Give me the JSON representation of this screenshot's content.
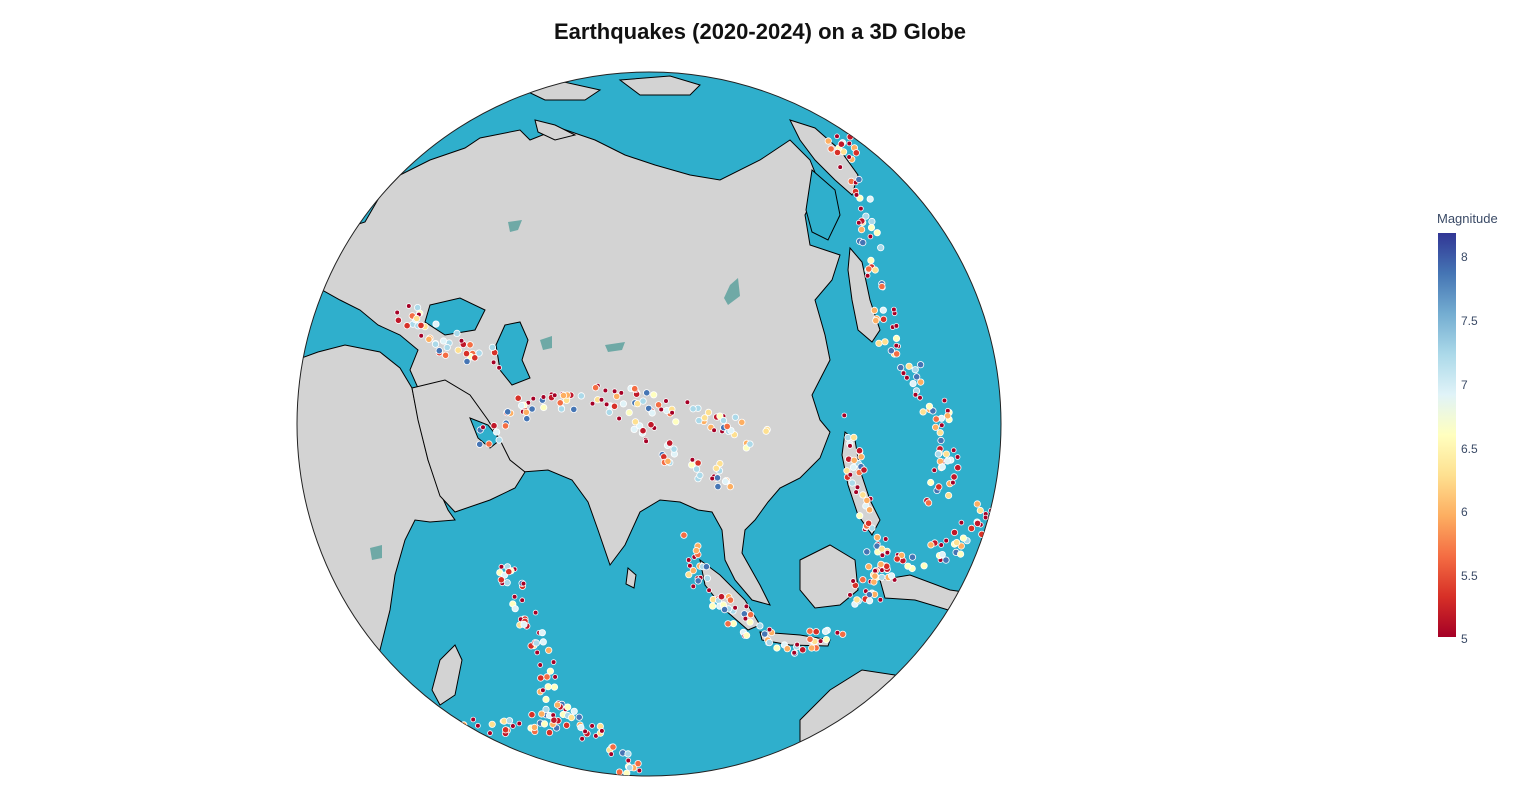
{
  "title": "Earthquakes (2020-2024) on a 3D Globe",
  "map": {
    "projection": "orthographic",
    "center": {
      "lon": 95,
      "lat": 25
    },
    "colors": {
      "ocean": "#2fafcc",
      "land": "#d3d3d3",
      "coastline": "#000000",
      "lakes": "#6fa9a6",
      "marker_outline": "#ffffff"
    }
  },
  "colorbar": {
    "title": "Magnitude",
    "ticks": [
      "8",
      "7.5",
      "7",
      "6.5",
      "6",
      "5.5",
      "5"
    ],
    "range": [
      5,
      8.15
    ],
    "colorscale": [
      "#a50026",
      "#d73027",
      "#f46d43",
      "#fdae61",
      "#fee090",
      "#ffffbf",
      "#e0f3f8",
      "#abd9e9",
      "#74add1",
      "#4575b4",
      "#313695"
    ]
  }
}
